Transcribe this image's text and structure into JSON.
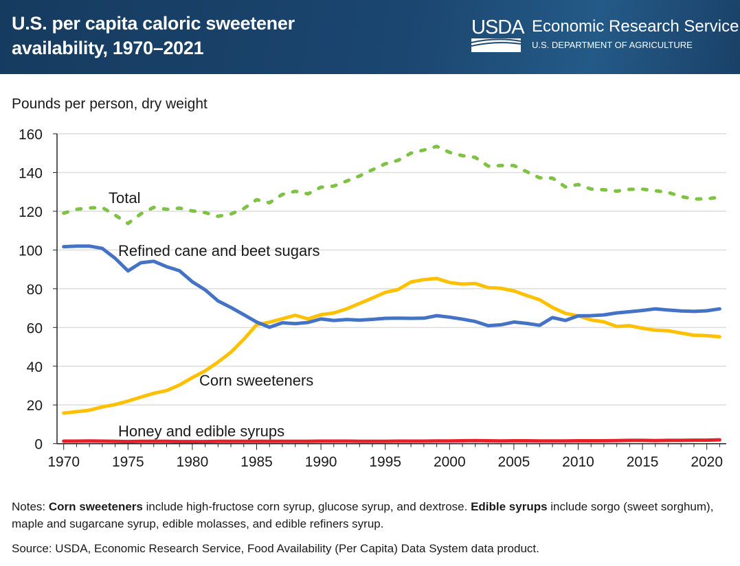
{
  "header": {
    "title_line1": "U.S. per capita caloric sweetener",
    "title_line2": "availability, 1970–2021",
    "logo_text": "USDA",
    "agency": "Economic Research Service",
    "department": "U.S. DEPARTMENT OF AGRICULTURE",
    "background_color": "#1b4670"
  },
  "chart_data": {
    "type": "line",
    "title": "U.S. per capita caloric sweetener availability, 1970–2021",
    "xlabel": "",
    "ylabel": "Pounds per person, dry weight",
    "xlim": [
      1970,
      2021
    ],
    "ylim": [
      0,
      160
    ],
    "xticks": [
      1970,
      1975,
      1980,
      1985,
      1990,
      1995,
      2000,
      2005,
      2010,
      2015,
      2020
    ],
    "yticks": [
      0,
      20,
      40,
      60,
      80,
      100,
      120,
      140,
      160
    ],
    "grid": true,
    "legend": "inline labels",
    "x": [
      1970,
      1971,
      1972,
      1973,
      1974,
      1975,
      1976,
      1977,
      1978,
      1979,
      1980,
      1981,
      1982,
      1983,
      1984,
      1985,
      1986,
      1987,
      1988,
      1989,
      1990,
      1991,
      1992,
      1993,
      1994,
      1995,
      1996,
      1997,
      1998,
      1999,
      2000,
      2001,
      2002,
      2003,
      2004,
      2005,
      2006,
      2007,
      2008,
      2009,
      2010,
      2011,
      2012,
      2013,
      2014,
      2015,
      2016,
      2017,
      2018,
      2019,
      2020,
      2021
    ],
    "series": [
      {
        "name": "Total",
        "color": "#7dc242",
        "style": "dotted",
        "values": [
          119,
          121,
          121.7,
          121.9,
          118,
          113.7,
          118.7,
          122,
          121,
          121.6,
          120.2,
          119.3,
          117.4,
          118.6,
          121.4,
          126,
          124.4,
          128.7,
          130.3,
          129,
          132.4,
          133,
          135.6,
          138.2,
          141.4,
          144.5,
          146.3,
          150,
          151.6,
          153.5,
          150.4,
          148.7,
          147.8,
          143.3,
          143.6,
          143.6,
          140.4,
          137.3,
          137.1,
          132.6,
          133.8,
          131.5,
          131.1,
          130.4,
          131.3,
          131.4,
          130.6,
          129.7,
          127.6,
          126.3,
          126.4,
          127.3
        ]
      },
      {
        "name": "Refined cane and beet sugars",
        "color": "#4472c4",
        "style": "solid",
        "values": [
          101.7,
          102,
          102,
          100.8,
          95.7,
          89.2,
          93.4,
          94.2,
          91.4,
          89.3,
          83.6,
          79.4,
          73.7,
          70.3,
          66.6,
          62.8,
          60.1,
          62.4,
          62,
          62.6,
          64.4,
          63.6,
          64.1,
          63.8,
          64.2,
          64.7,
          64.8,
          64.7,
          64.8,
          66.1,
          65.3,
          64.3,
          63.1,
          60.9,
          61.4,
          62.8,
          62.1,
          61.1,
          65.1,
          63.6,
          66,
          66.1,
          66.5,
          67.5,
          68.1,
          68.8,
          69.6,
          69,
          68.5,
          68.3,
          68.6,
          69.6
        ]
      },
      {
        "name": "Corn sweeteners",
        "color": "#ffc000",
        "style": "solid",
        "values": [
          15.8,
          16.5,
          17.3,
          19,
          20.2,
          22,
          24,
          26,
          27.4,
          30.3,
          34.1,
          37.6,
          42.1,
          47.2,
          53.9,
          61.4,
          62.7,
          64.5,
          66.3,
          64.4,
          66.6,
          67.5,
          69.6,
          72.4,
          75.2,
          78.1,
          79.6,
          83.5,
          84.7,
          85.3,
          83.2,
          82.4,
          82.7,
          80.6,
          80.2,
          78.9,
          76.5,
          74.3,
          70.3,
          67.3,
          66,
          63.9,
          62.9,
          60.5,
          60.9,
          59.6,
          58.6,
          58.3,
          57.1,
          56,
          55.8,
          55.2
        ]
      },
      {
        "name": "Honey and edible syrups",
        "color": "#e8202a",
        "style": "solid",
        "values": [
          1.3,
          1.3,
          1.4,
          1.3,
          1.2,
          1.1,
          1.2,
          1.2,
          1.2,
          1.1,
          1.1,
          1.1,
          1.2,
          1.2,
          1.2,
          1.2,
          1.2,
          1.2,
          1.2,
          1.2,
          1.3,
          1.3,
          1.3,
          1.2,
          1.2,
          1.2,
          1.3,
          1.3,
          1.3,
          1.4,
          1.4,
          1.5,
          1.6,
          1.5,
          1.4,
          1.5,
          1.5,
          1.4,
          1.4,
          1.4,
          1.5,
          1.5,
          1.5,
          1.6,
          1.7,
          1.7,
          1.6,
          1.7,
          1.7,
          1.8,
          1.8,
          2
        ]
      }
    ]
  },
  "notes": {
    "prefix": "Notes: ",
    "term1": "Corn sweeteners",
    "text1": " include high-fructose corn syrup, glucose syrup, and dextrose. ",
    "term2": "Edible syrups",
    "text2": " include sorgo (sweet sorghum), maple and sugarcane syrup, edible molasses, and edible refiners syrup."
  },
  "source": "Source: USDA, Economic Research Service, Food Availability (Per Capita) Data System data product."
}
